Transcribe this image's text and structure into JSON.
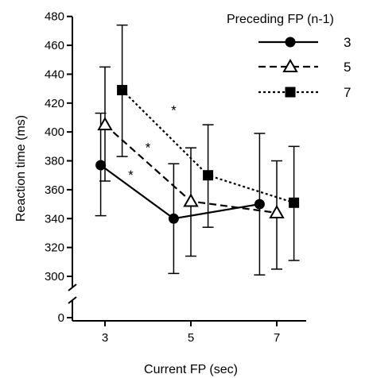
{
  "chart_data": {
    "type": "line",
    "title": "",
    "xlabel": "Current FP (sec)",
    "ylabel": "Reaction time (ms)",
    "x_ticks": [
      3,
      5,
      7
    ],
    "y_ticks": [
      300,
      320,
      340,
      360,
      380,
      400,
      420,
      440,
      460,
      480
    ],
    "y_zero_label": "0",
    "ylim": [
      290,
      480
    ],
    "y_axis_break": true,
    "legend": {
      "title": "Preceding FP (n-1)",
      "position": "top-right"
    },
    "grid": false,
    "series": [
      {
        "name": "3",
        "marker": "circle-filled",
        "line_style": "solid",
        "x": [
          2.9,
          4.6,
          6.6
        ],
        "y": [
          377,
          340,
          350
        ],
        "err_low": [
          342,
          302,
          301
        ],
        "err_high": [
          413,
          378,
          399
        ]
      },
      {
        "name": "5",
        "marker": "triangle-open",
        "line_style": "dashed",
        "x": [
          3.0,
          5.0,
          7.0
        ],
        "y": [
          405,
          352,
          344
        ],
        "err_low": [
          366,
          314,
          305
        ],
        "err_high": [
          445,
          389,
          380
        ]
      },
      {
        "name": "7",
        "marker": "square-filled",
        "line_style": "dotted",
        "x": [
          3.4,
          5.4,
          7.4
        ],
        "y": [
          429,
          370,
          351
        ],
        "err_low": [
          383,
          334,
          311
        ],
        "err_high": [
          474,
          405,
          390
        ]
      }
    ],
    "annotations": [
      {
        "text": "*",
        "x": 3.6,
        "y": 367
      },
      {
        "text": "*",
        "x": 4.0,
        "y": 386
      },
      {
        "text": "*",
        "x": 4.6,
        "y": 412
      }
    ]
  }
}
